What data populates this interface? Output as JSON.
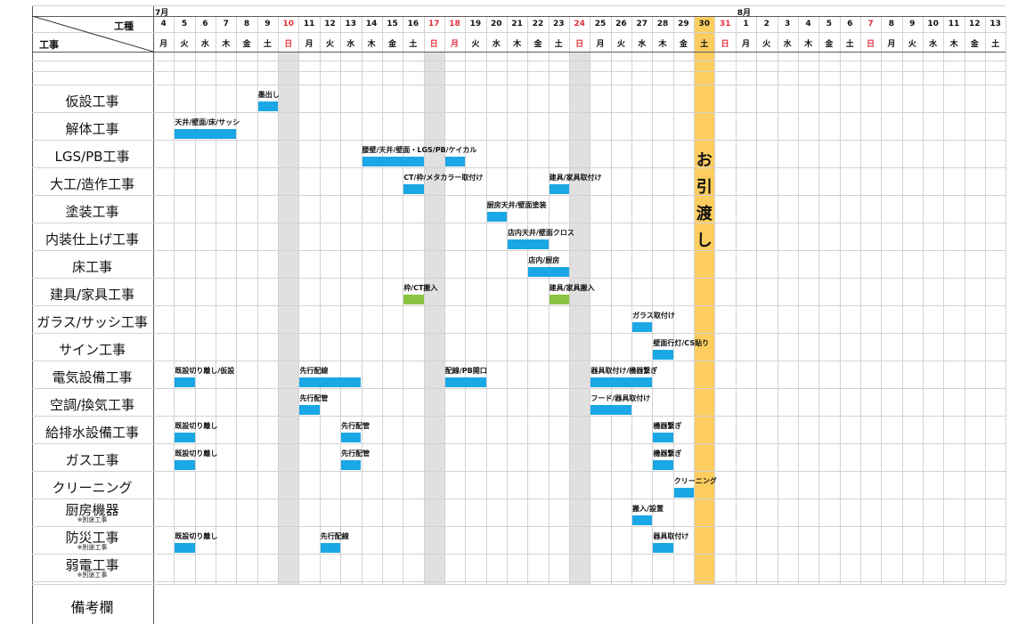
{
  "months": [
    {
      "label": "7月",
      "start_day_index": 0
    },
    {
      "label": "8月",
      "start_day_index": 28
    }
  ],
  "corner": {
    "top_label": "工種",
    "bottom_label": "工事"
  },
  "days": [
    {
      "d": "4",
      "w": "月"
    },
    {
      "d": "5",
      "w": "火"
    },
    {
      "d": "6",
      "w": "水"
    },
    {
      "d": "7",
      "w": "木"
    },
    {
      "d": "8",
      "w": "金"
    },
    {
      "d": "9",
      "w": "土"
    },
    {
      "d": "10",
      "w": "日",
      "holiday": true
    },
    {
      "d": "11",
      "w": "月"
    },
    {
      "d": "12",
      "w": "火"
    },
    {
      "d": "13",
      "w": "水"
    },
    {
      "d": "14",
      "w": "木"
    },
    {
      "d": "15",
      "w": "金"
    },
    {
      "d": "16",
      "w": "土"
    },
    {
      "d": "17",
      "w": "日",
      "holiday": true
    },
    {
      "d": "18",
      "w": "月",
      "holiday": true
    },
    {
      "d": "19",
      "w": "火"
    },
    {
      "d": "20",
      "w": "水"
    },
    {
      "d": "21",
      "w": "木"
    },
    {
      "d": "22",
      "w": "金"
    },
    {
      "d": "23",
      "w": "土"
    },
    {
      "d": "24",
      "w": "日",
      "holiday": true
    },
    {
      "d": "25",
      "w": "月"
    },
    {
      "d": "26",
      "w": "火"
    },
    {
      "d": "27",
      "w": "水"
    },
    {
      "d": "28",
      "w": "木"
    },
    {
      "d": "29",
      "w": "金"
    },
    {
      "d": "30",
      "w": "土"
    },
    {
      "d": "31",
      "w": "日",
      "holiday": true
    },
    {
      "d": "1",
      "w": "月"
    },
    {
      "d": "2",
      "w": "火"
    },
    {
      "d": "3",
      "w": "水"
    },
    {
      "d": "4",
      "w": "木"
    },
    {
      "d": "5",
      "w": "金"
    },
    {
      "d": "6",
      "w": "土"
    },
    {
      "d": "7",
      "w": "日",
      "holiday": true
    },
    {
      "d": "8",
      "w": "月"
    },
    {
      "d": "9",
      "w": "火"
    },
    {
      "d": "10",
      "w": "水"
    },
    {
      "d": "11",
      "w": "木"
    },
    {
      "d": "12",
      "w": "金"
    },
    {
      "d": "13",
      "w": "土"
    }
  ],
  "shaded_day_indices": [
    6,
    13,
    20
  ],
  "handover": {
    "day_index": 26,
    "chars": [
      "お",
      "引",
      "渡",
      "し"
    ]
  },
  "trades": [
    {
      "name": "仮設工事"
    },
    {
      "name": "解体工事"
    },
    {
      "name": "LGS/PB工事"
    },
    {
      "name": "大工/造作工事"
    },
    {
      "name": "塗装工事"
    },
    {
      "name": "内装仕上げ工事"
    },
    {
      "name": "床工事"
    },
    {
      "name": "建具/家具工事"
    },
    {
      "name": "ガラス/サッシ工事"
    },
    {
      "name": "サイン工事"
    },
    {
      "name": "電気設備工事"
    },
    {
      "name": "空調/換気工事"
    },
    {
      "name": "給排水設備工事"
    },
    {
      "name": "ガス工事"
    },
    {
      "name": "クリーニング"
    },
    {
      "name": "厨房機器",
      "note": "※別途工事"
    },
    {
      "name": "防災工事",
      "note": "※別途工事"
    },
    {
      "name": "弱電工事",
      "note": "※別途工事"
    },
    {
      "name": "備考欄"
    }
  ],
  "tasks": [
    {
      "row": 0,
      "start": 5,
      "days": 1,
      "label": "墨出し",
      "color": "blue"
    },
    {
      "row": 1,
      "start": 1,
      "days": 3,
      "label": "天井/壁面/床/サッシ",
      "color": "blue"
    },
    {
      "row": 2,
      "start": 10,
      "days": 3,
      "label": "腰壁/天井/壁面・LGS/PB/ケイカル",
      "color": "blue"
    },
    {
      "row": 2,
      "start": 14,
      "days": 1,
      "label": "",
      "color": "blue"
    },
    {
      "row": 3,
      "start": 12,
      "days": 1,
      "label": "CT/枠/メタカラー取付け",
      "color": "blue"
    },
    {
      "row": 3,
      "start": 19,
      "days": 1,
      "label": "建具/家具取付け",
      "color": "blue"
    },
    {
      "row": 4,
      "start": 16,
      "days": 1,
      "label": "厨房天井/壁面塗装",
      "color": "blue"
    },
    {
      "row": 5,
      "start": 17,
      "days": 2,
      "label": "店内天井/壁面クロス",
      "color": "blue"
    },
    {
      "row": 6,
      "start": 18,
      "days": 2,
      "label": "店内/厨房",
      "color": "blue"
    },
    {
      "row": 7,
      "start": 12,
      "days": 1,
      "label": "枠/CT搬入",
      "color": "green"
    },
    {
      "row": 7,
      "start": 19,
      "days": 1,
      "label": "建具/家具搬入",
      "color": "green"
    },
    {
      "row": 8,
      "start": 23,
      "days": 1,
      "label": "ガラス取付け",
      "color": "blue"
    },
    {
      "row": 9,
      "start": 24,
      "days": 1,
      "label": "壁面行灯/CS貼り",
      "color": "blue"
    },
    {
      "row": 10,
      "start": 1,
      "days": 1,
      "label": "既設切り離し/仮設",
      "color": "blue"
    },
    {
      "row": 10,
      "start": 7,
      "days": 3,
      "label": "先行配線",
      "color": "blue"
    },
    {
      "row": 10,
      "start": 14,
      "days": 2,
      "label": "配線/PB開口",
      "color": "blue"
    },
    {
      "row": 10,
      "start": 21,
      "days": 3,
      "label": "器具取付け/機器繋ぎ",
      "color": "blue"
    },
    {
      "row": 11,
      "start": 7,
      "days": 1,
      "label": "先行配管",
      "color": "blue"
    },
    {
      "row": 11,
      "start": 21,
      "days": 2,
      "label": "フード/器具取付け",
      "color": "blue"
    },
    {
      "row": 12,
      "start": 1,
      "days": 1,
      "label": "既設切り離し",
      "color": "blue"
    },
    {
      "row": 12,
      "start": 9,
      "days": 1,
      "label": "先行配管",
      "color": "blue"
    },
    {
      "row": 12,
      "start": 24,
      "days": 1,
      "label": "機器繋ぎ",
      "color": "blue"
    },
    {
      "row": 13,
      "start": 1,
      "days": 1,
      "label": "既設切り離し",
      "color": "blue"
    },
    {
      "row": 13,
      "start": 9,
      "days": 1,
      "label": "先行配管",
      "color": "blue"
    },
    {
      "row": 13,
      "start": 24,
      "days": 1,
      "label": "機器繋ぎ",
      "color": "blue"
    },
    {
      "row": 14,
      "start": 25,
      "days": 1,
      "label": "クリーニング",
      "color": "blue"
    },
    {
      "row": 15,
      "start": 23,
      "days": 1,
      "label": "搬入/設置",
      "color": "blue"
    },
    {
      "row": 16,
      "start": 1,
      "days": 1,
      "label": "既設切り離し",
      "color": "blue"
    },
    {
      "row": 16,
      "start": 8,
      "days": 1,
      "label": "先行配線",
      "color": "blue"
    },
    {
      "row": 16,
      "start": 24,
      "days": 1,
      "label": "器具取付け",
      "color": "blue"
    }
  ],
  "colors": {
    "blue": "#1aa7e6",
    "green": "#88c441",
    "handover": "#fdce5f",
    "holiday_text": "#e0303a",
    "shade": "#e0e0e0"
  }
}
